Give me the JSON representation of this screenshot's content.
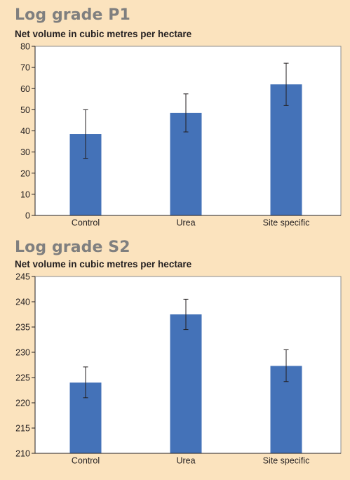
{
  "colors": {
    "background": "#fbe3be",
    "plot": "#ffffff",
    "bar": "#4472b8",
    "title": "#7f7f7f"
  },
  "chart_data": [
    {
      "type": "bar",
      "title": "Log grade P1",
      "subtitle": "Net volume in cubic metres per hectare",
      "categories": [
        "Control",
        "Urea",
        "Site specific"
      ],
      "values": [
        38.5,
        48.5,
        62
      ],
      "error_low": [
        27,
        39.5,
        52
      ],
      "error_high": [
        50,
        57.5,
        72
      ],
      "ylim": [
        0,
        80
      ],
      "yticks": [
        0,
        10,
        20,
        30,
        40,
        50,
        60,
        70,
        80
      ],
      "grid": false
    },
    {
      "type": "bar",
      "title": "Log grade S2",
      "subtitle": "Net volume in cubic metres per hectare",
      "categories": [
        "Control",
        "Urea",
        "Site specific"
      ],
      "values": [
        224,
        237.5,
        227.3
      ],
      "error_low": [
        221,
        234.5,
        224.2
      ],
      "error_high": [
        227.1,
        240.5,
        230.5
      ],
      "ylim": [
        210,
        245
      ],
      "yticks": [
        210,
        215,
        220,
        225,
        230,
        235,
        240,
        245
      ],
      "grid": false
    }
  ]
}
